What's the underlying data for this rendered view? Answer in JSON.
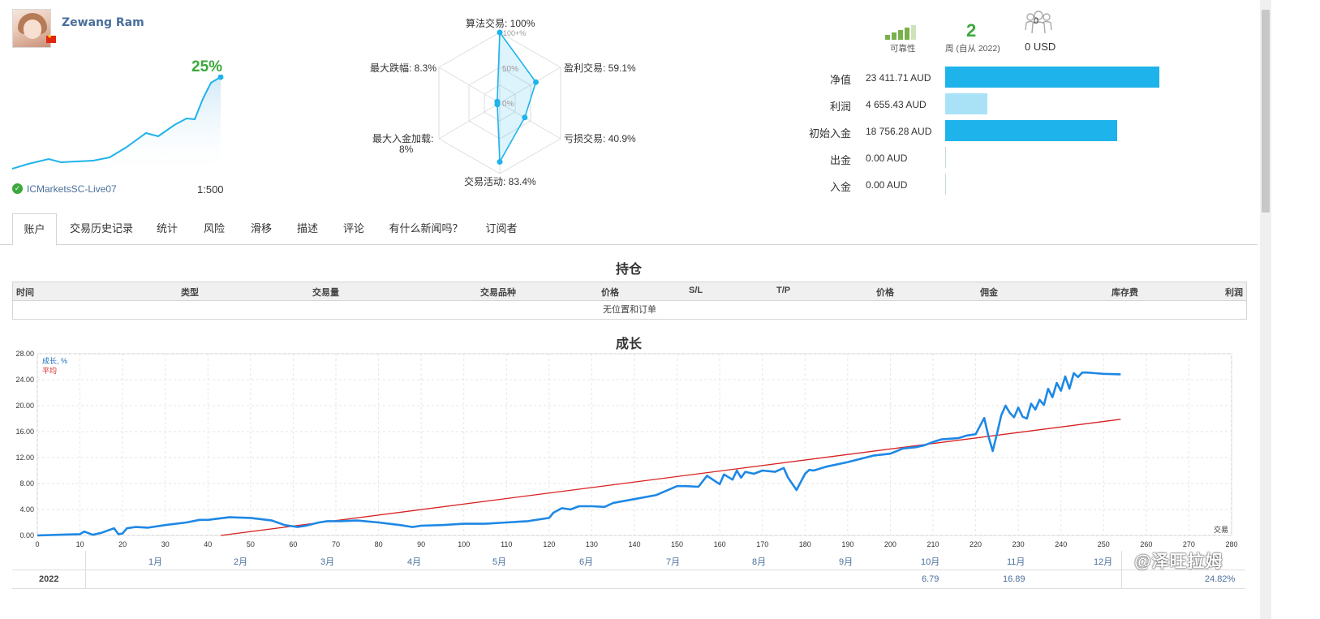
{
  "profile": {
    "name": "Zewang Ram",
    "growth": "25%",
    "broker": "ICMarketsSC-Live07",
    "leverage": "1:500"
  },
  "radar": {
    "algo": "算法交易: 100%",
    "profit_trades": "盈利交易: 59.1%",
    "loss_trades": "亏损交易: 40.9%",
    "activity": "交易活动: 83.4%",
    "max_load_1": "最大入金加载:",
    "max_load_2": "8%",
    "max_drawdown": "最大跌幅: 8.3%",
    "scale_100": "100+%",
    "scale_50": "50%",
    "scale_0": "0%",
    "values": [
      100,
      59.1,
      40.9,
      83.4,
      8,
      8.3
    ]
  },
  "stats": {
    "reliability_label": "可靠性",
    "weeks": "2",
    "weeks_label": "周 (自从 2022)",
    "subscribers": "0",
    "subscribers_value": "0 USD"
  },
  "finance": [
    {
      "label": "净值",
      "value": "23 411.71 AUD",
      "amount": 23411.71,
      "color": "#1fb3eb"
    },
    {
      "label": "利润",
      "value": "4 655.43 AUD",
      "amount": 4655.43,
      "color": "#a9e2f7"
    },
    {
      "label": "初始入金",
      "value": "18 756.28 AUD",
      "amount": 18756.28,
      "color": "#1fb3eb"
    },
    {
      "label": "出金",
      "value": "0.00 AUD",
      "amount": 0,
      "color": "#1fb3eb"
    },
    {
      "label": "入金",
      "value": "0.00 AUD",
      "amount": 0,
      "color": "#1fb3eb"
    }
  ],
  "tabs": [
    "账户",
    "交易历史记录",
    "统计",
    "风险",
    "滑移",
    "描述",
    "评论",
    "有什么新闻吗？",
    "订阅者"
  ],
  "positions": {
    "title": "持仓",
    "headers": [
      "时间",
      "类型",
      "交易量",
      "交易品种",
      "价格",
      "S/L",
      "T/P",
      "价格",
      "佣金",
      "库存费",
      "利润"
    ],
    "empty": "无位置和订单"
  },
  "growth_chart": {
    "title": "成长",
    "legend_growth": "成长, %",
    "legend_avg": "平均",
    "xunit": "交易",
    "months": [
      "1月",
      "2月",
      "3月",
      "4月",
      "5月",
      "6月",
      "7月",
      "8月",
      "9月",
      "10月",
      "11月",
      "12月"
    ],
    "year": "2022",
    "year_values": {
      "oct": "6.79",
      "nov": "16.89",
      "total": "24.82%"
    }
  },
  "chart_data": {
    "type": "line",
    "title": "成长",
    "xlabel": "交易",
    "ylabel": "",
    "xlim": [
      0,
      280
    ],
    "ylim": [
      0,
      28
    ],
    "xticks": [
      0,
      10,
      20,
      30,
      40,
      50,
      60,
      70,
      80,
      90,
      100,
      110,
      120,
      130,
      140,
      150,
      160,
      170,
      180,
      190,
      200,
      210,
      220,
      230,
      240,
      250,
      260,
      270,
      280
    ],
    "yticks": [
      "0.00",
      "4.00",
      "8.00",
      "12.00",
      "16.00",
      "20.00",
      "24.00",
      "28.00"
    ],
    "series": [
      {
        "name": "成长, %",
        "color": "#1e88e5",
        "x": [
          0,
          5,
          10,
          11,
          13,
          15,
          18,
          19,
          20,
          21,
          23,
          26,
          30,
          35,
          38,
          40,
          45,
          50,
          55,
          58,
          61,
          63,
          66,
          68,
          71,
          75,
          80,
          85,
          88,
          90,
          95,
          100,
          105,
          110,
          115,
          120,
          121,
          123,
          125,
          127,
          130,
          133,
          135,
          140,
          145,
          150,
          152,
          155,
          157,
          160,
          161,
          163,
          164,
          165,
          166,
          168,
          170,
          173,
          175,
          176,
          178,
          180,
          181,
          182,
          185,
          190,
          193,
          196,
          200,
          203,
          206,
          208,
          210,
          212,
          214,
          216,
          218,
          220,
          222,
          223,
          224,
          225,
          226,
          227,
          228,
          229,
          230,
          231,
          232,
          233,
          234,
          235,
          236,
          237,
          238,
          239,
          240,
          241,
          242,
          243,
          244,
          245,
          246,
          248,
          250,
          254
        ],
        "y": [
          0,
          0.1,
          0.2,
          0.6,
          0.1,
          0.4,
          1.1,
          0.2,
          0.3,
          1.1,
          1.3,
          1.2,
          1.6,
          2.0,
          2.4,
          2.4,
          2.8,
          2.7,
          2.3,
          1.6,
          1.3,
          1.5,
          2.0,
          2.2,
          2.2,
          2.3,
          2.0,
          1.6,
          1.3,
          1.5,
          1.6,
          1.8,
          1.8,
          2.0,
          2.2,
          2.7,
          3.5,
          4.2,
          4.0,
          4.5,
          4.5,
          4.4,
          5.0,
          5.6,
          6.2,
          7.6,
          7.6,
          7.5,
          9.2,
          7.9,
          9.4,
          8.6,
          10.0,
          8.9,
          9.8,
          9.5,
          10.0,
          9.8,
          10.4,
          8.9,
          7.0,
          9.5,
          10.1,
          10.0,
          10.6,
          11.3,
          11.8,
          12.3,
          12.6,
          13.4,
          13.6,
          13.9,
          14.4,
          14.8,
          14.9,
          15.0,
          15.4,
          15.6,
          18.1,
          15.3,
          13.0,
          15.7,
          18.5,
          20.0,
          18.9,
          18.2,
          19.7,
          18.3,
          18.0,
          20.3,
          19.4,
          20.9,
          20.1,
          22.6,
          21.3,
          23.5,
          22.3,
          24.5,
          22.6,
          25.0,
          24.4,
          25.1,
          25.1,
          25.0,
          24.9,
          24.82
        ]
      },
      {
        "name": "平均",
        "color": "#d82020",
        "x": [
          43,
          254
        ],
        "y": [
          0,
          17.9
        ]
      }
    ]
  }
}
